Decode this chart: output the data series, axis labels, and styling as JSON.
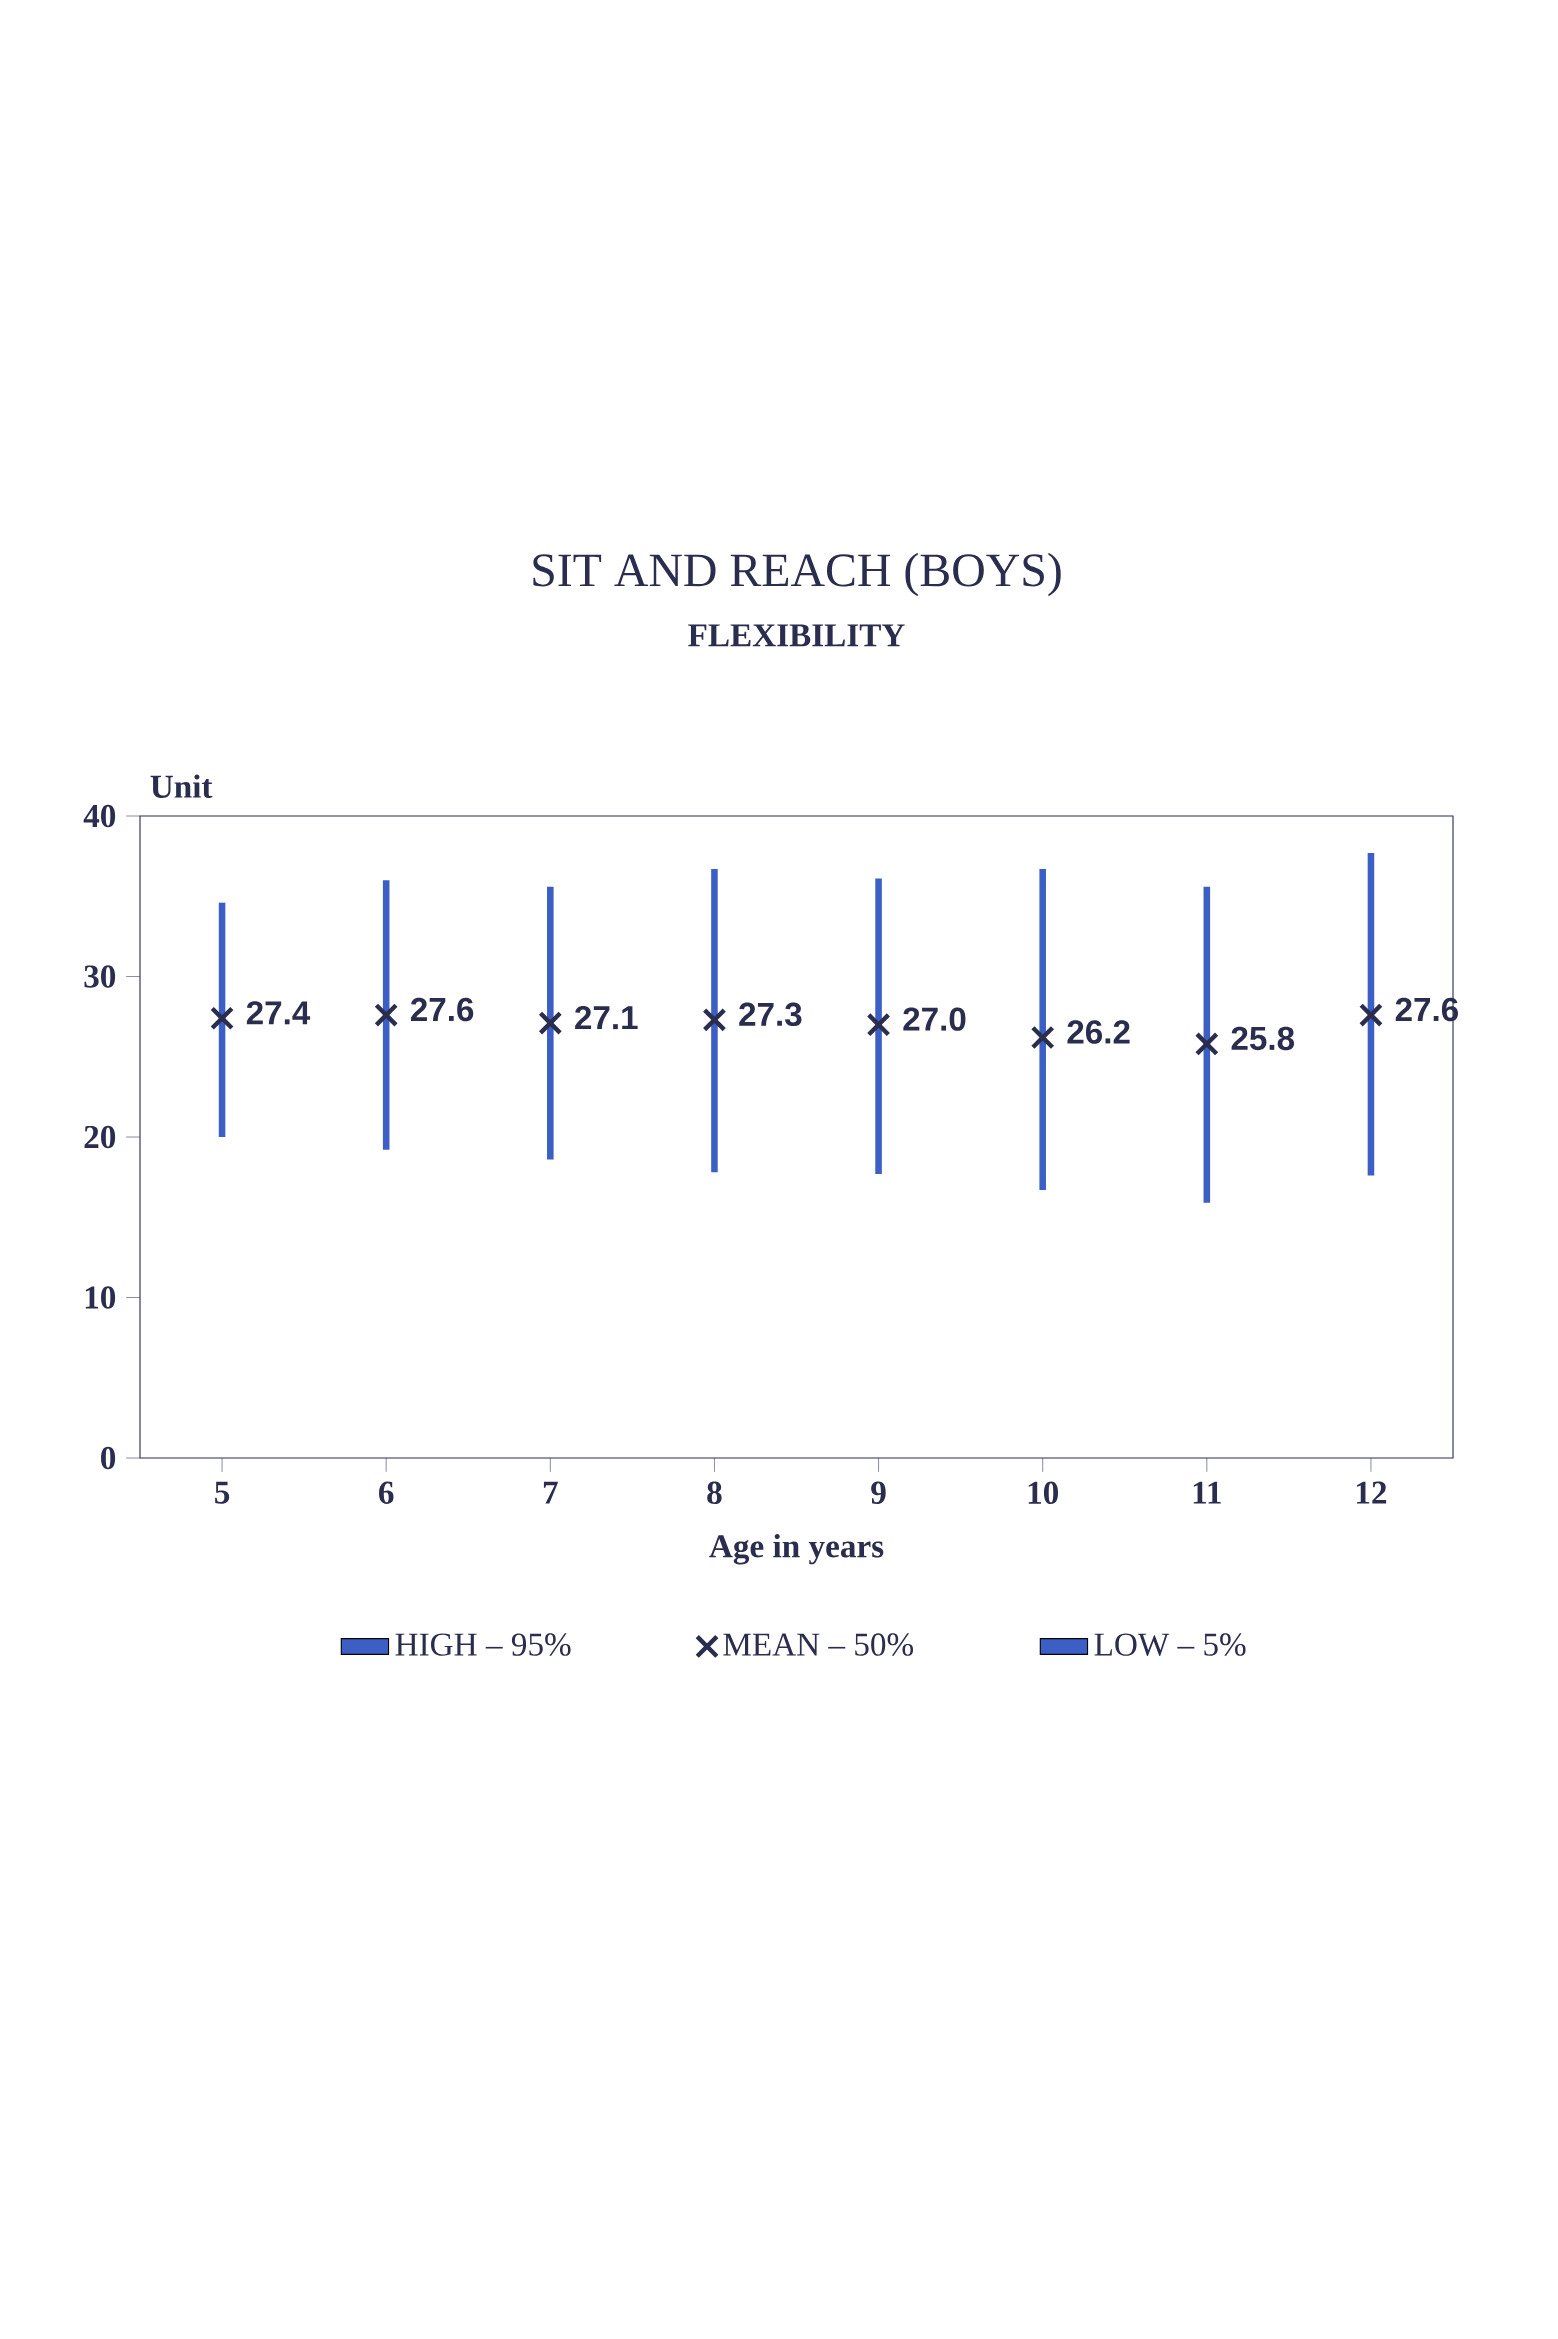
{
  "chart_data": {
    "type": "bar",
    "title": "SIT AND REACH  (BOYS)",
    "subtitle": "FLEXIBILITY",
    "xlabel": "Age in years",
    "ylabel": "Unit",
    "categories": [
      "5",
      "6",
      "7",
      "8",
      "9",
      "10",
      "11",
      "12"
    ],
    "series": [
      {
        "name": "HIGH – 95%",
        "color": "#3b5fc4",
        "base": [
          27.4,
          27.6,
          27.1,
          27.3,
          27.0,
          26.2,
          25.8,
          27.6
        ],
        "values": [
          7.2,
          8.4,
          8.5,
          9.4,
          9.1,
          10.5,
          9.8,
          10.1
        ]
      },
      {
        "name": "MEAN – 50%",
        "type": "scatter",
        "color": "#2a2d4e",
        "marker": "cross",
        "values": [
          27.4,
          27.6,
          27.1,
          27.3,
          27.0,
          26.2,
          25.8,
          27.6
        ],
        "value_labels": [
          "27.4",
          "27.6",
          "27.1",
          "27.3",
          "27.0",
          "26.2",
          "25.8",
          "27.6"
        ]
      },
      {
        "name": "LOW – 5%",
        "color": "#3b5fc4",
        "base": [
          20.0,
          19.2,
          18.6,
          17.8,
          17.7,
          16.7,
          15.9,
          17.6
        ],
        "values": [
          7.4,
          8.4,
          8.5,
          9.5,
          9.3,
          9.5,
          9.9,
          10.0
        ]
      }
    ],
    "ylim": [
      0,
      40
    ],
    "yticks": [
      0,
      10,
      20,
      30,
      40
    ],
    "grid": false,
    "legend": "bottom"
  }
}
